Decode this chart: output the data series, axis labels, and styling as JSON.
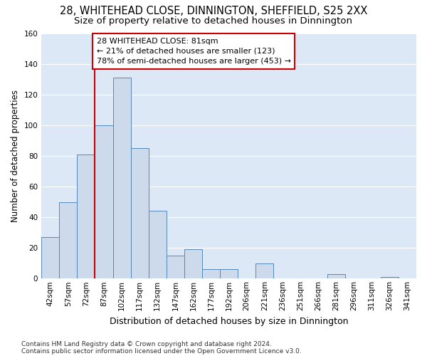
{
  "title": "28, WHITEHEAD CLOSE, DINNINGTON, SHEFFIELD, S25 2XX",
  "subtitle": "Size of property relative to detached houses in Dinnington",
  "xlabel": "Distribution of detached houses by size in Dinnington",
  "ylabel": "Number of detached properties",
  "bar_color": "#ccdaeb",
  "bar_edge_color": "#5588bb",
  "background_color": "#dce8f5",
  "fig_background": "#ffffff",
  "categories": [
    "42sqm",
    "57sqm",
    "72sqm",
    "87sqm",
    "102sqm",
    "117sqm",
    "132sqm",
    "147sqm",
    "162sqm",
    "177sqm",
    "192sqm",
    "206sqm",
    "221sqm",
    "236sqm",
    "251sqm",
    "266sqm",
    "281sqm",
    "296sqm",
    "311sqm",
    "326sqm",
    "341sqm"
  ],
  "values": [
    27,
    50,
    81,
    100,
    131,
    85,
    44,
    15,
    19,
    6,
    6,
    0,
    10,
    0,
    0,
    0,
    3,
    0,
    0,
    1,
    0
  ],
  "ylim": [
    0,
    160
  ],
  "yticks": [
    0,
    20,
    40,
    60,
    80,
    100,
    120,
    140,
    160
  ],
  "vline_index": 3,
  "vline_color": "#cc0000",
  "annotation_text": "28 WHITEHEAD CLOSE: 81sqm\n← 21% of detached houses are smaller (123)\n78% of semi-detached houses are larger (453) →",
  "annotation_box_color": "#ffffff",
  "annotation_box_edge": "#cc0000",
  "footer_line1": "Contains HM Land Registry data © Crown copyright and database right 2024.",
  "footer_line2": "Contains public sector information licensed under the Open Government Licence v3.0.",
  "grid_color": "#ffffff",
  "title_fontsize": 10.5,
  "subtitle_fontsize": 9.5,
  "xlabel_fontsize": 9,
  "ylabel_fontsize": 8.5,
  "tick_fontsize": 7.5,
  "annot_fontsize": 8,
  "footer_fontsize": 6.5
}
